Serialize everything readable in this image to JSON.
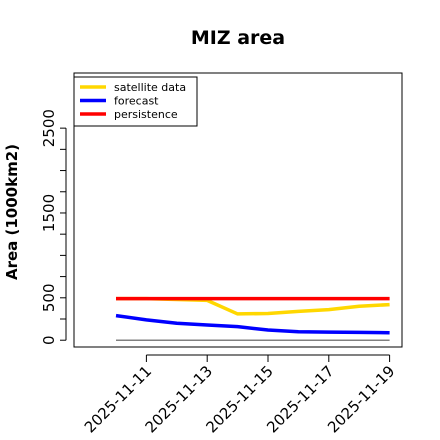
{
  "chart_data": {
    "type": "line",
    "title": "MIZ area",
    "xlabel": "",
    "ylabel": "Area (1000km2)",
    "x": [
      "2025-11-10",
      "2025-11-11",
      "2025-11-12",
      "2025-11-13",
      "2025-11-14",
      "2025-11-15",
      "2025-11-16",
      "2025-11-17",
      "2025-11-18",
      "2025-11-19"
    ],
    "xticks": [
      "2025-11-11",
      "2025-11-13",
      "2025-11-15",
      "2025-11-17",
      "2025-11-19"
    ],
    "xtick_colors": [
      "#228B22",
      "#000000",
      "#000000",
      "#000000",
      "#000000"
    ],
    "yticks": [
      0,
      500,
      1500,
      2500
    ],
    "ylim": [
      -80,
      3150
    ],
    "grid": false,
    "legend_position": "top-left",
    "series": [
      {
        "name": "satellite data",
        "color": "#FFD700",
        "values": [
          490,
          490,
          480,
          470,
          310,
          315,
          340,
          360,
          400,
          420
        ]
      },
      {
        "name": "forecast",
        "color": "#0000FF",
        "values": [
          290,
          240,
          200,
          180,
          160,
          120,
          100,
          95,
          92,
          88
        ]
      },
      {
        "name": "persistence",
        "color": "#FF0000",
        "values": [
          490,
          490,
          490,
          490,
          490,
          490,
          490,
          490,
          490,
          490
        ]
      }
    ],
    "baseline": {
      "value": 0,
      "color": "#808080"
    }
  }
}
